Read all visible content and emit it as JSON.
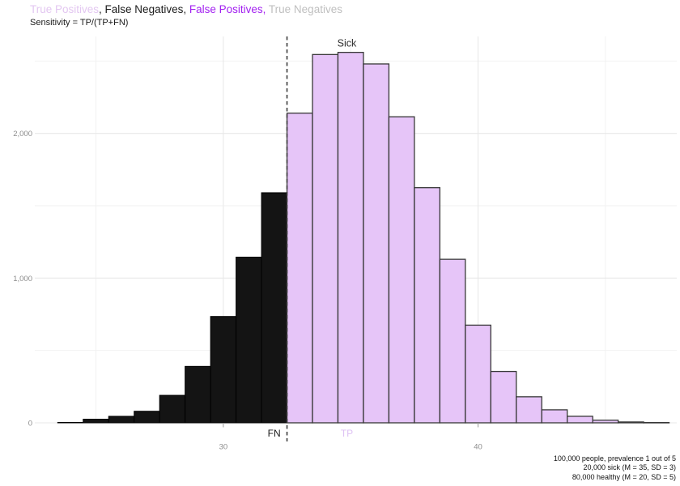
{
  "header": {
    "title_segments": [
      {
        "text": "True Positives",
        "color": "#e3c7f1"
      },
      {
        "text": ", ",
        "color": "#1a1a1a"
      },
      {
        "text": "False Negatives",
        "color": "#1a1a1a"
      },
      {
        "text": ", ",
        "color": "#1a1a1a"
      },
      {
        "text": "False Positives",
        "color": "#a21ff0"
      },
      {
        "text": ", ",
        "color": "#a21ff0"
      },
      {
        "text": "True Negatives",
        "color": "#bfbfbf"
      }
    ],
    "subtitle": "Sensitivity = TP/(TP+FN)"
  },
  "chart_data": {
    "type": "bar",
    "title": "True Positives, False Negatives, False Positives, True Negatives",
    "subtitle": "Sensitivity = TP/(TP+FN)",
    "xlabel": "",
    "ylabel": "",
    "bin_width": 1,
    "x": [
      24,
      25,
      26,
      27,
      28,
      29,
      30,
      31,
      32,
      33,
      34,
      35,
      36,
      37,
      38,
      39,
      40,
      41,
      42,
      43,
      44,
      45,
      46,
      47
    ],
    "values": [
      3,
      25,
      45,
      80,
      190,
      390,
      735,
      1145,
      1590,
      2140,
      2545,
      2560,
      2480,
      2115,
      1625,
      1130,
      675,
      355,
      180,
      90,
      45,
      18,
      6,
      2
    ],
    "xlim": [
      22.6,
      47.8
    ],
    "ylim": [
      0,
      2670
    ],
    "x_ticks": [
      {
        "v": 30,
        "label": "30"
      },
      {
        "v": 40,
        "label": "40"
      }
    ],
    "x_minor_gridlines": [
      25,
      35,
      45
    ],
    "y_ticks": [
      {
        "v": 0,
        "label": "0"
      },
      {
        "v": 1000,
        "label": "1,000"
      },
      {
        "v": 2000,
        "label": "2,000"
      }
    ],
    "y_minor_gridlines": [
      500,
      1500,
      2500
    ],
    "grid": "major+minor",
    "legend_position": "none",
    "threshold_line": {
      "x": 32.5,
      "style": "dashed",
      "color": "#3c3c3c"
    },
    "colors": {
      "fn_fill": "#141414",
      "fn_stroke": "#000000",
      "tp_fill": "#e6c5f8",
      "tp_stroke": "#383838",
      "axis_text": "#8c8c8c",
      "major_grid": "#e8e8e8",
      "minor_grid": "#f2f2f2",
      "tick_mark": "#9a9a9a"
    },
    "annotations": [
      {
        "text": "Sick",
        "x": 34.85,
        "y": 2600,
        "color": "#2e2e2e",
        "anchor": "middle",
        "size": 12.5
      },
      {
        "text": "FN",
        "x": 32.25,
        "y": -95,
        "color": "#1a1a1a",
        "anchor": "end",
        "size": 12
      },
      {
        "text": "TP",
        "x": 34.85,
        "y": -95,
        "color": "#dec2f4",
        "anchor": "middle",
        "size": 12
      }
    ]
  },
  "caption": {
    "lines": [
      "100,000 people, prevalence 1 out of 5",
      "20,000 sick (M = 35, SD = 3)",
      "80,000 healthy (M = 20, SD = 5)"
    ]
  }
}
